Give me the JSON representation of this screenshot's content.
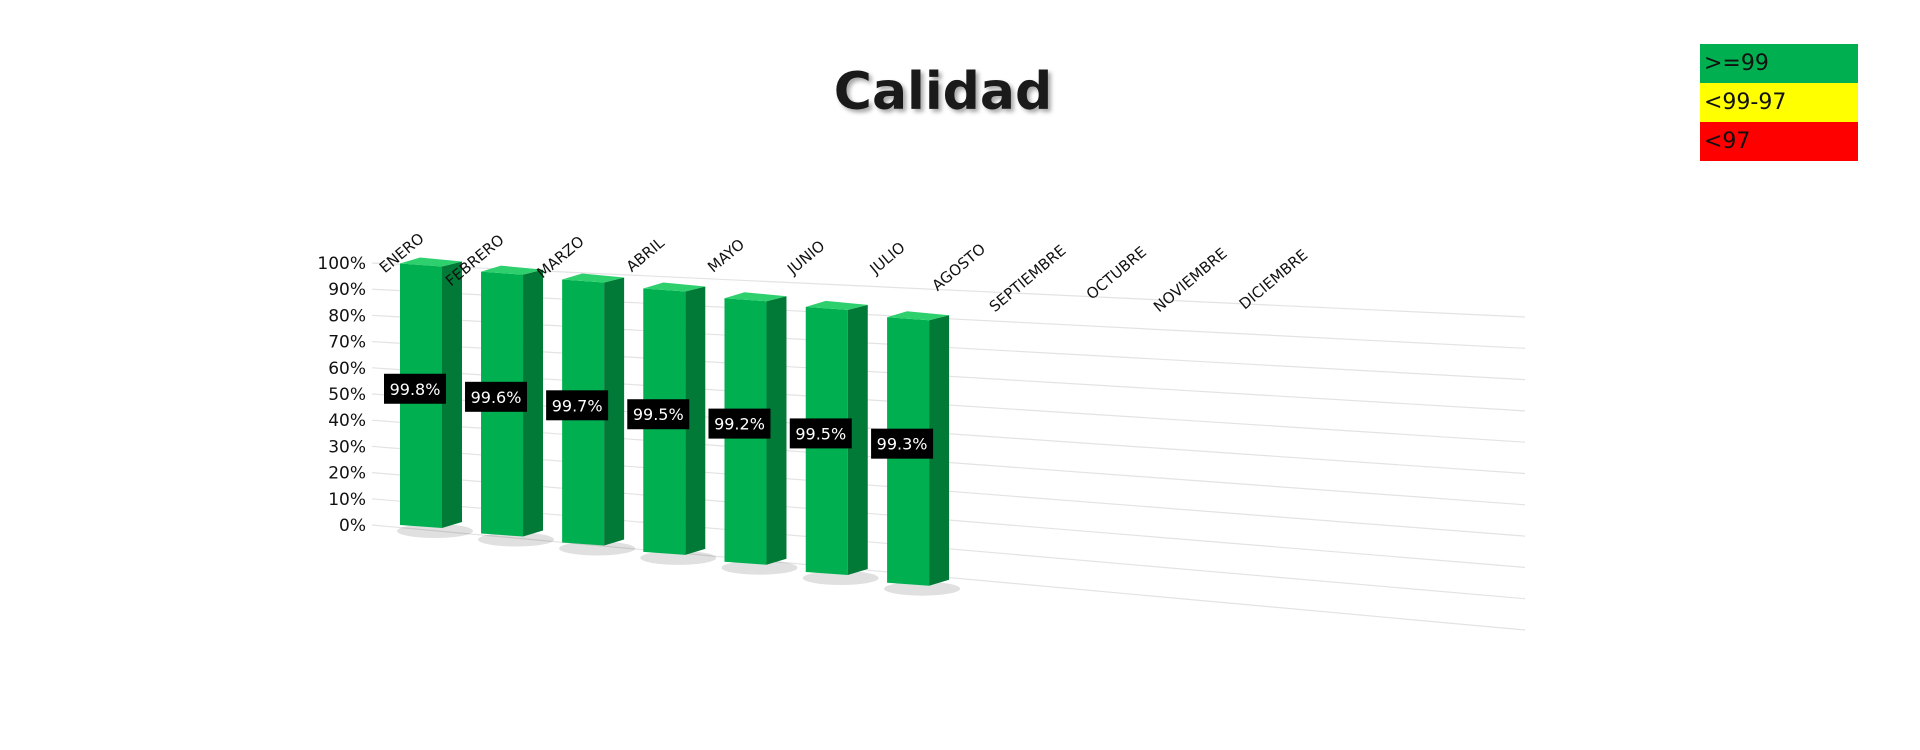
{
  "chart_data": {
    "type": "bar",
    "title": "Calidad",
    "categories": [
      "ENERO",
      "FEBRERO",
      "MARZO",
      "ABRIL",
      "MAYO",
      "JUNIO",
      "JULIO",
      "AGOSTO",
      "SEPTIEMBRE",
      "OCTUBRE",
      "NOVIEMBRE",
      "DICIEMBRE"
    ],
    "values": [
      99.8,
      99.6,
      99.7,
      99.5,
      99.2,
      99.5,
      99.3,
      null,
      null,
      null,
      null,
      null
    ],
    "data_labels": [
      "99.8%",
      "99.6%",
      "99.7%",
      "99.5%",
      "99.2%",
      "99.5%",
      "99.3%",
      "",
      "",
      "",
      "",
      ""
    ],
    "y_ticks": [
      "0%",
      "10%",
      "20%",
      "30%",
      "40%",
      "50%",
      "60%",
      "70%",
      "80%",
      "90%",
      "100%"
    ],
    "ylim": [
      0,
      100
    ],
    "grid": true,
    "style": "3d-column",
    "bar_color": "#00b050",
    "legend_position": "top-right"
  },
  "legend": {
    "items": [
      {
        "label": ">=99",
        "color": "#00b050"
      },
      {
        "label": "<99-97",
        "color": "#ffff00"
      },
      {
        "label": "<97",
        "color": "#ff0000"
      }
    ]
  }
}
